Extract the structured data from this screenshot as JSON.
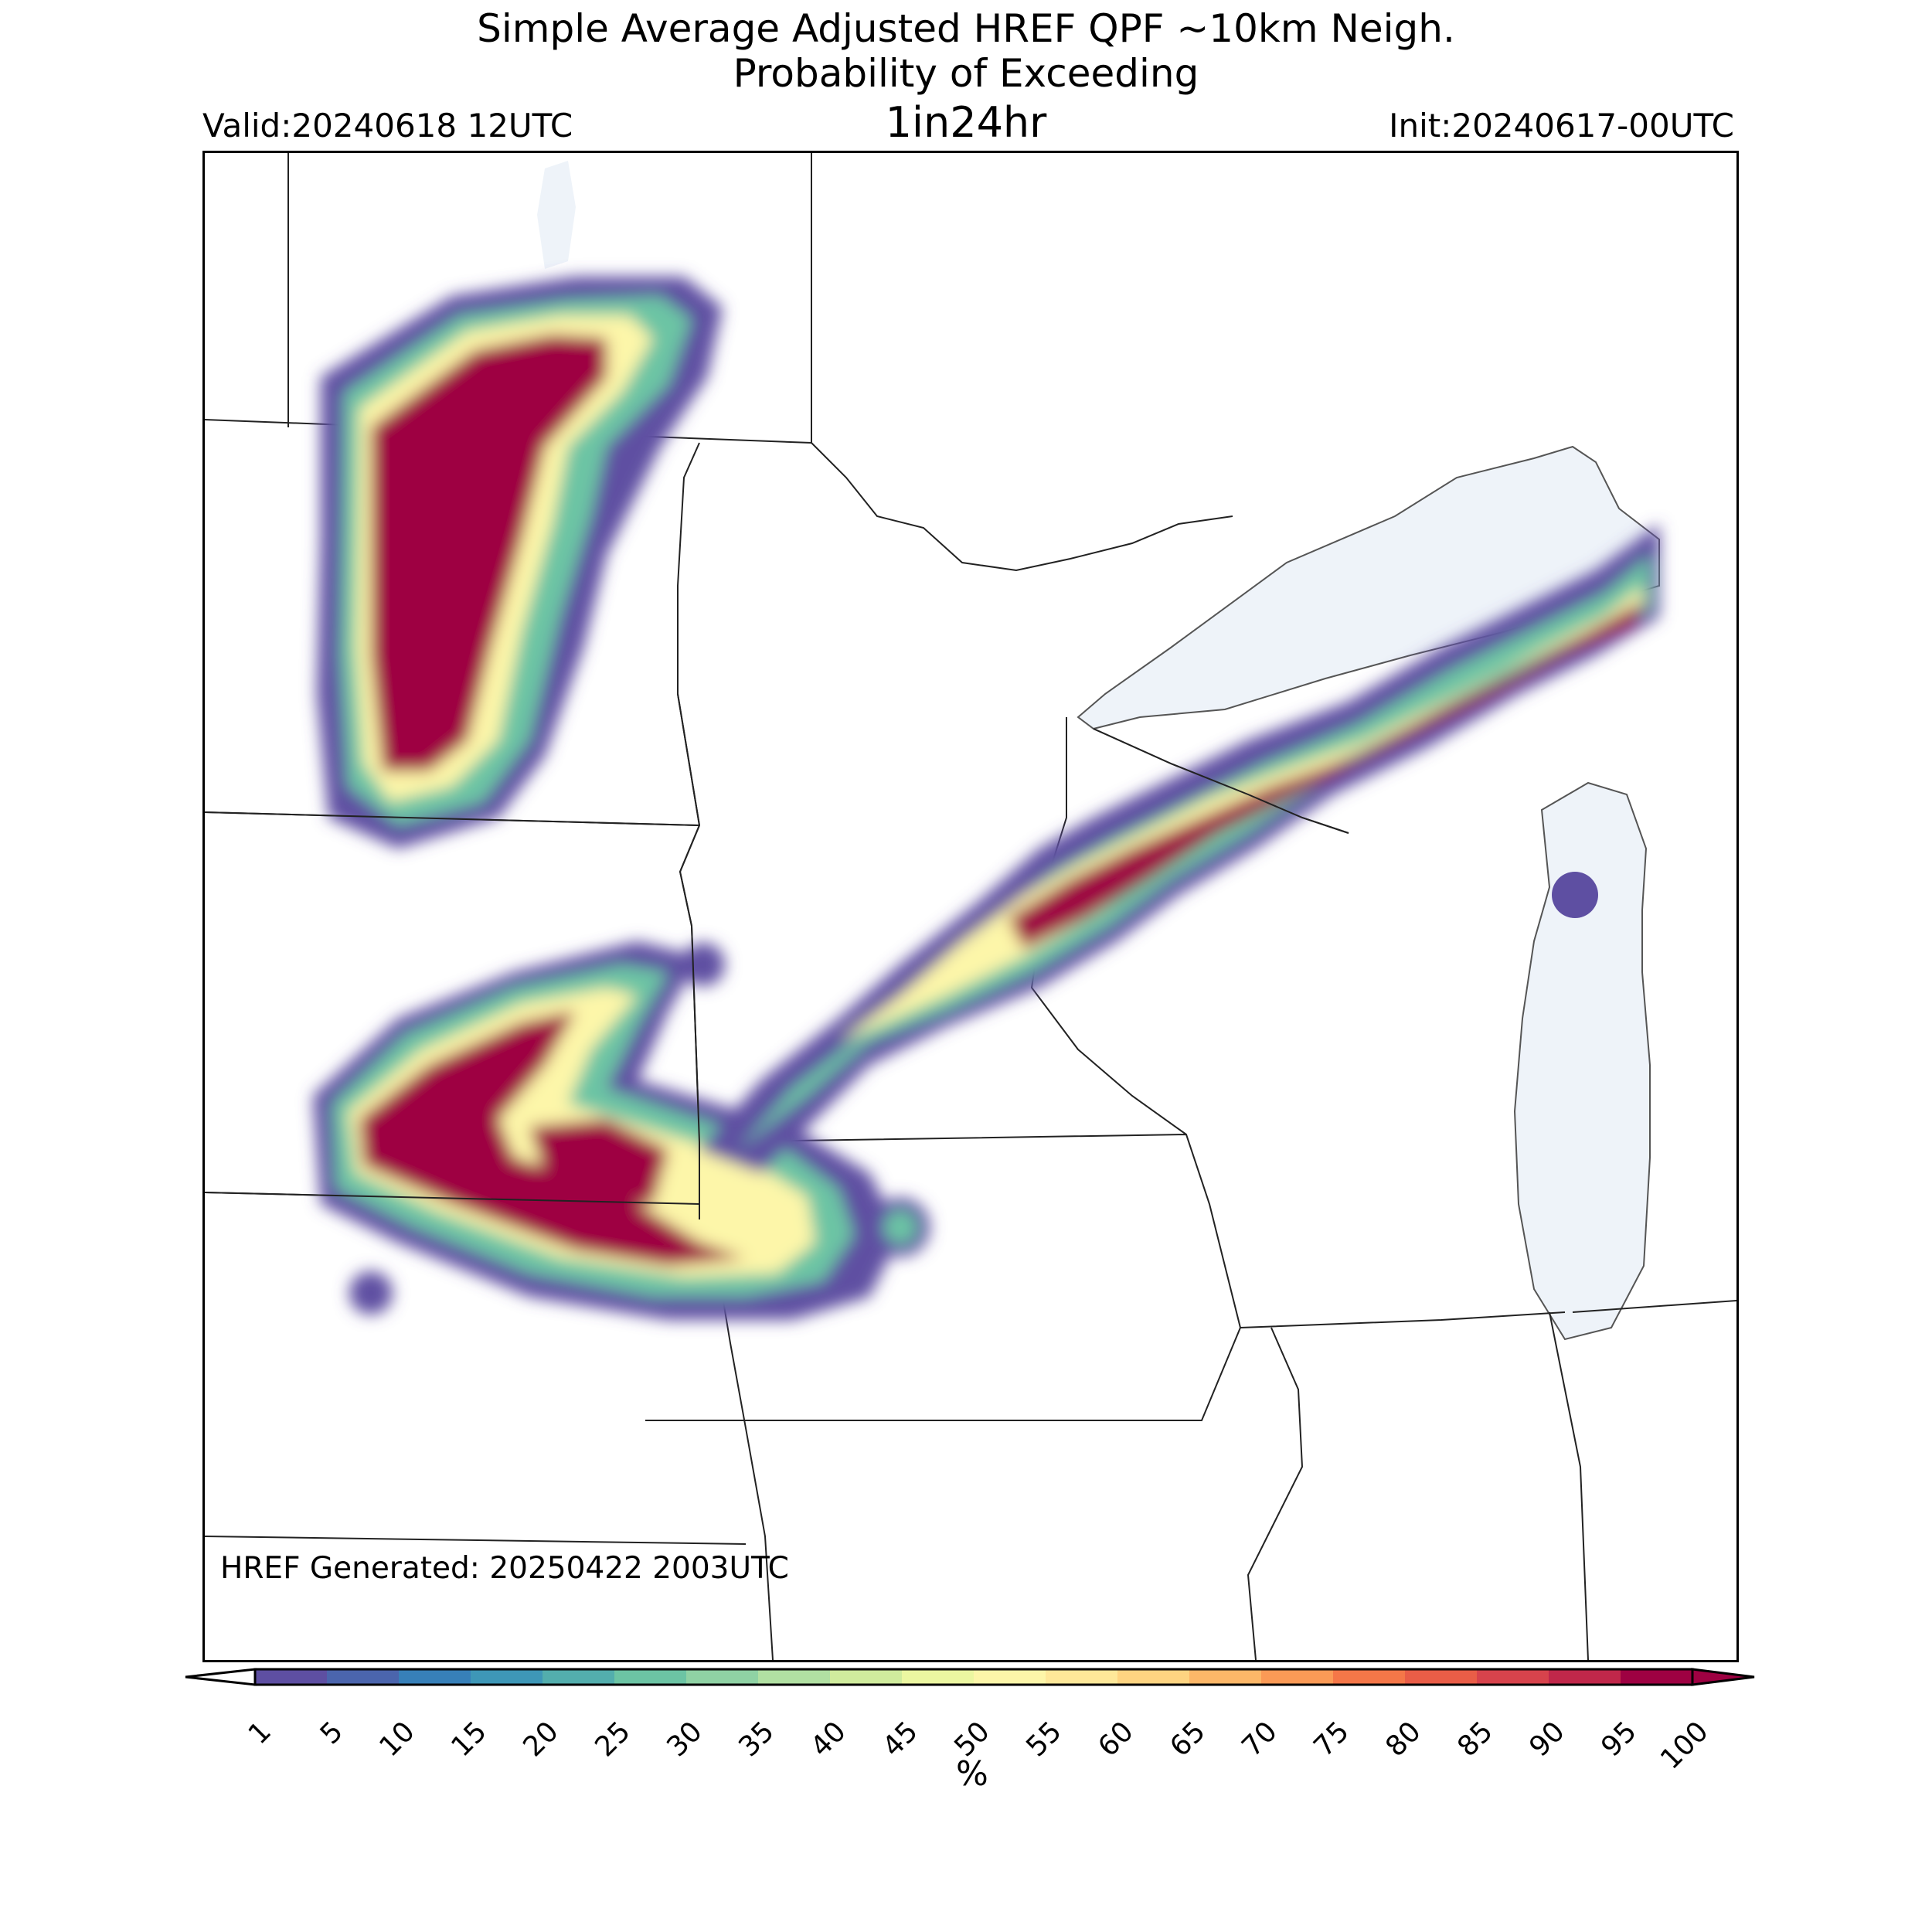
{
  "header": {
    "title_line1": "Simple Average Adjusted HREF QPF ~10km Neigh.",
    "title_line2": "Probability of Exceeding",
    "title_line3": "1in24hr",
    "valid": "Valid:20240618 12UTC",
    "init": "Init:20240617-00UTC"
  },
  "map": {
    "generated": "HREF Generated: 20250422 2003UTC",
    "region": "Upper Midwest / Great Lakes",
    "colors": {
      "water": "#eef3f9",
      "border": "#222222"
    }
  },
  "colorbar": {
    "unit": "%",
    "levels": [
      "1",
      "5",
      "10",
      "15",
      "20",
      "25",
      "30",
      "35",
      "40",
      "45",
      "50",
      "55",
      "60",
      "65",
      "70",
      "75",
      "80",
      "85",
      "90",
      "95",
      "100"
    ],
    "colors": [
      "#5e4fa2",
      "#4b65ad",
      "#3780b9",
      "#3e97b7",
      "#53aead",
      "#6cc4a4",
      "#8fd2a4",
      "#b1e0a2",
      "#d0ec9d",
      "#ecf7a1",
      "#fdf6a9",
      "#fee899",
      "#fed481",
      "#fdb768",
      "#fb9a56",
      "#f57748",
      "#e95d47",
      "#d7434c",
      "#c0274a",
      "#9e0142"
    ]
  }
}
